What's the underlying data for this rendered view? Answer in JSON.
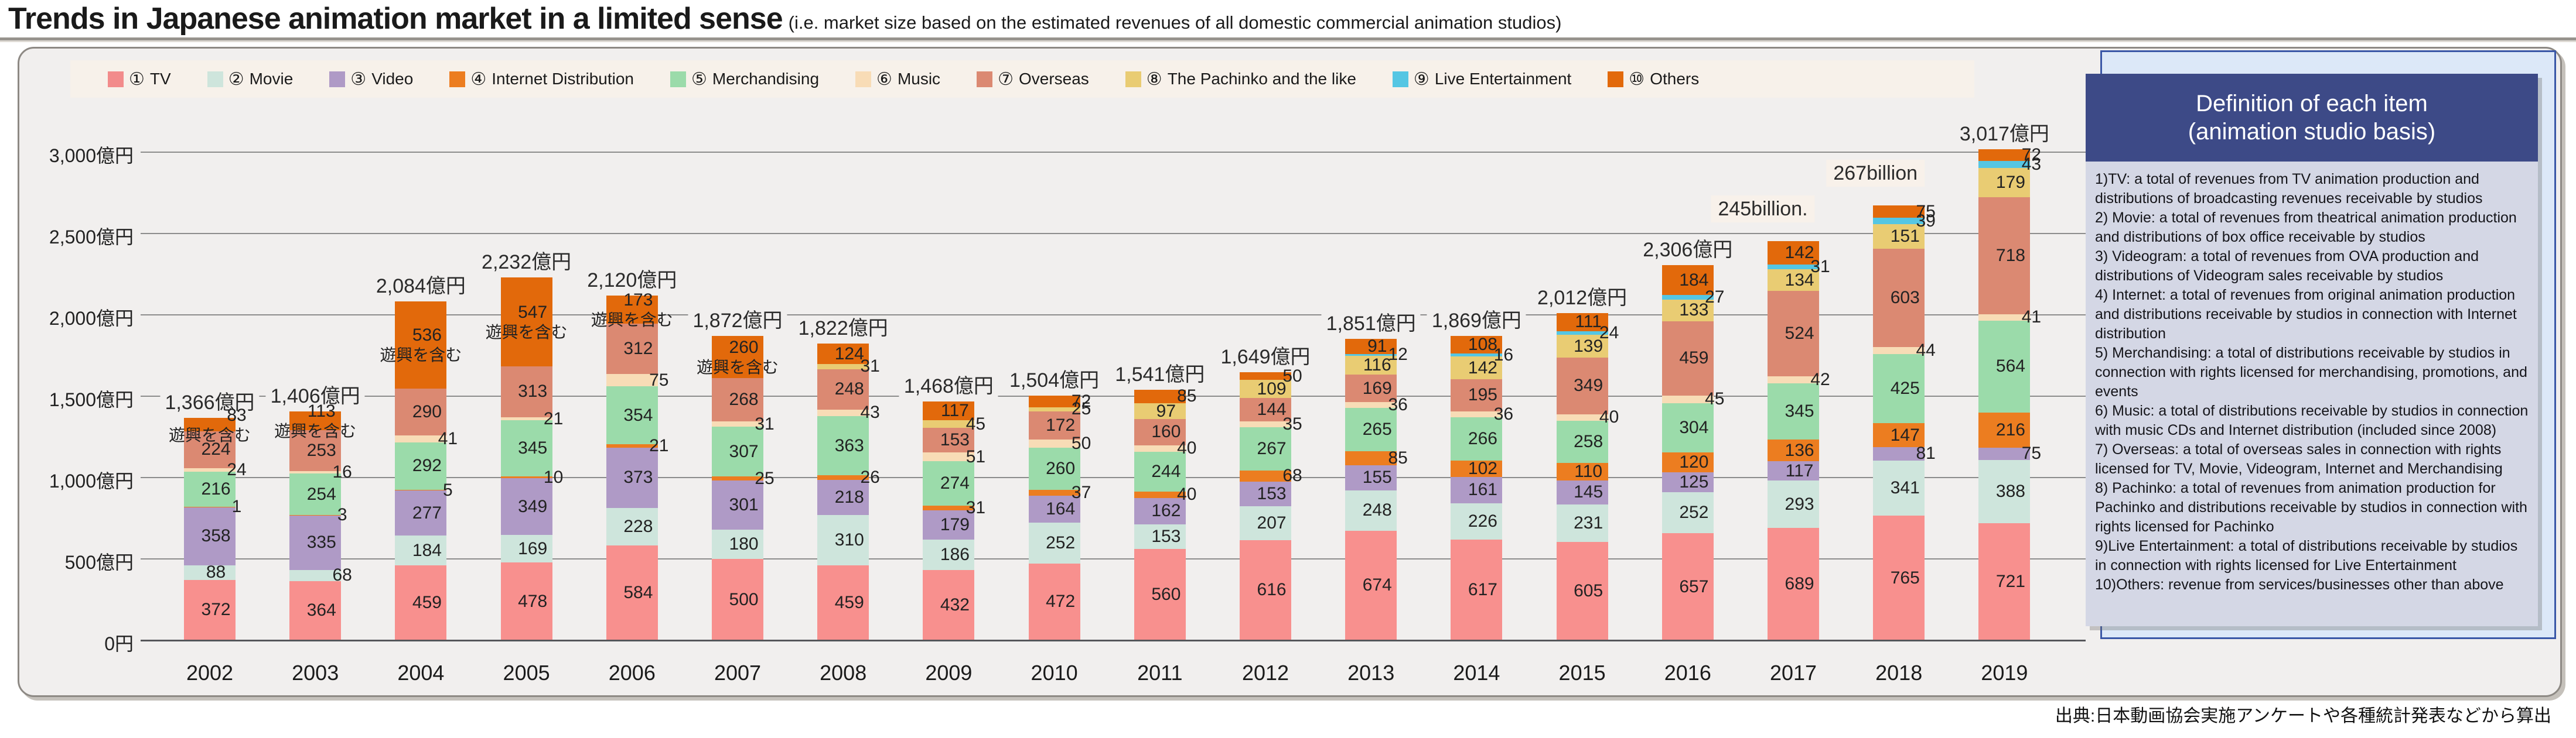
{
  "page": {
    "title": "Trends in Japanese animation market in a limited sense",
    "subtitle": "(i.e. market size based on the estimated revenues of all domestic commercial animation studios)",
    "source": "出典:日本動画協会実施アンケートや各種統計発表などから算出"
  },
  "colors": {
    "panel_bg": "#f1efee",
    "legend_bg": "#f7f1ea",
    "gridline": "#8c8c8c",
    "baseline": "#55565a",
    "total_box_bg": "#f8f1ea",
    "definition_header_bg": "#3d4a87",
    "definition_body_bg": "#d4d7e5",
    "blue_box_border": "#3a57a7",
    "blue_box_bg": "#dce8f8"
  },
  "legend": {
    "items": [
      {
        "num": "①",
        "label": "TV",
        "color": "#f28b8b"
      },
      {
        "num": "②",
        "label": "Movie",
        "color": "#cee5dc"
      },
      {
        "num": "③",
        "label": "Video",
        "color": "#af9ac6"
      },
      {
        "num": "④",
        "label": "Internet Distribution",
        "color": "#ec7d20"
      },
      {
        "num": "⑤",
        "label": "Merchandising",
        "color": "#9bdbaa"
      },
      {
        "num": "⑥",
        "label": "Music",
        "color": "#f8dcb6"
      },
      {
        "num": "⑦",
        "label": "Overseas",
        "color": "#db8972"
      },
      {
        "num": "⑧",
        "label": "The Pachinko and the like",
        "color": "#e9cc73"
      },
      {
        "num": "⑨",
        "label": "Live Entertainment",
        "color": "#55c6e3"
      },
      {
        "num": "⑩",
        "label": "Others",
        "color": "#e2690b"
      }
    ]
  },
  "definition_panel": {
    "title_line1": "Definition of each item",
    "title_line2": "(animation studio basis)",
    "items": [
      "1)TV: a total of revenues from TV animation production and distributions of broadcasting revenues receivable by studios",
      "2) Movie: a total of revenues from theatrical animation production and distributions of box office receivable by studios",
      "3) Videogram: a total of revenues from OVA production and distributions of Videogram sales receivable by studios",
      "4) Internet: a total of revenues from original animation production and distributions receivable by studios in connection with Internet distribution",
      "5) Merchandising: a total of distributions receivable by studios in connection with rights licensed for merchandising, promotions, and events",
      "6) Music: a total of distributions receivable by studios in connection with music CDs and Internet distribution (included since 2008)",
      "7) Overseas: a total of overseas sales in connection with rights licensed for TV, Movie, Videogram, Internet and Merchandising",
      "8) Pachinko: a total of revenues from animation production for Pachinko and distributions receivable by studios in connection with rights licensed for Pachinko",
      "9)Live Entertainment: a total of distributions receivable by studios in connection with rights licensed for Live Entertainment",
      "10)Others: revenue from services/businesses other than above"
    ]
  },
  "chart_data": {
    "type": "bar",
    "stacked": true,
    "unit": "億円",
    "grid": true,
    "legend_position": "top",
    "ylim": [
      0,
      3000
    ],
    "y_ticks": [
      {
        "label": "0円",
        "value": 0
      },
      {
        "label": "500億円",
        "value": 500
      },
      {
        "label": "1,000億円",
        "value": 1000
      },
      {
        "label": "1,500億円",
        "value": 1500
      },
      {
        "label": "2,000億円",
        "value": 2000
      },
      {
        "label": "2,500億円",
        "value": 2500
      },
      {
        "label": "3,000億円",
        "value": 3000
      }
    ],
    "categories": [
      "2002",
      "2003",
      "2004",
      "2005",
      "2006",
      "2007",
      "2008",
      "2009",
      "2010",
      "2011",
      "2012",
      "2013",
      "2014",
      "2015",
      "2016",
      "2017",
      "2018",
      "2019"
    ],
    "series": [
      {
        "name": "TV",
        "color": "#f8908e",
        "values": [
          372,
          364,
          459,
          478,
          584,
          500,
          459,
          432,
          472,
          560,
          616,
          674,
          617,
          605,
          657,
          689,
          765,
          721
        ]
      },
      {
        "name": "Movie",
        "color": "#cee5dc",
        "values": [
          88,
          68,
          184,
          169,
          228,
          180,
          310,
          186,
          252,
          153,
          207,
          248,
          226,
          231,
          252,
          293,
          341,
          388
        ]
      },
      {
        "name": "Video",
        "color": "#af9ac6",
        "values": [
          358,
          335,
          277,
          349,
          373,
          301,
          218,
          179,
          164,
          162,
          153,
          155,
          161,
          145,
          125,
          117,
          81,
          75
        ]
      },
      {
        "name": "Internet Distribution",
        "color": "#ec7d20",
        "values": [
          1,
          3,
          5,
          10,
          21,
          25,
          26,
          31,
          37,
          40,
          68,
          85,
          102,
          110,
          120,
          136,
          147,
          216
        ]
      },
      {
        "name": "Merchandising",
        "color": "#9bdbaa",
        "values": [
          216,
          254,
          292,
          345,
          354,
          307,
          363,
          274,
          260,
          244,
          267,
          265,
          266,
          258,
          304,
          345,
          425,
          564
        ]
      },
      {
        "name": "Music",
        "color": "#f8dcb6",
        "values": [
          24,
          16,
          41,
          21,
          75,
          31,
          43,
          51,
          50,
          40,
          35,
          36,
          36,
          40,
          45,
          42,
          44,
          41
        ]
      },
      {
        "name": "Overseas",
        "color": "#db8972",
        "values": [
          224,
          253,
          290,
          313,
          312,
          268,
          248,
          153,
          172,
          160,
          144,
          169,
          195,
          349,
          459,
          524,
          603,
          718
        ]
      },
      {
        "name": "The Pachinko and the like",
        "color": "#e9cc73",
        "values": [
          0,
          0,
          0,
          0,
          0,
          0,
          31,
          45,
          25,
          97,
          109,
          116,
          142,
          139,
          133,
          134,
          151,
          179
        ]
      },
      {
        "name": "Live Entertainment",
        "color": "#55c6e3",
        "values": [
          0,
          0,
          0,
          0,
          0,
          0,
          0,
          0,
          0,
          0,
          0,
          12,
          16,
          24,
          27,
          31,
          39,
          43
        ]
      },
      {
        "name": "Others",
        "color": "#e2690b",
        "values": [
          83,
          113,
          536,
          547,
          173,
          260,
          124,
          117,
          72,
          85,
          50,
          91,
          108,
          111,
          184,
          142,
          75,
          72
        ]
      }
    ],
    "total_labels": [
      "1,366億円",
      "1,406億円",
      "2,084億円",
      "2,232億円",
      "2,120億円",
      "1,872億円",
      "1,822億円",
      "1,468億円",
      "1,504億円",
      "1,541億円",
      "1,649億円",
      "1,851億円",
      "1,869億円",
      "2,012億円",
      "2,306億円",
      "245billion.",
      "267billion",
      "3,017億円"
    ],
    "boxed_total_years": [
      "2017",
      "2018"
    ],
    "note": {
      "text": "遊興を含む",
      "years": [
        "2002",
        "2003",
        "2004",
        "2005",
        "2006",
        "2007"
      ]
    }
  }
}
